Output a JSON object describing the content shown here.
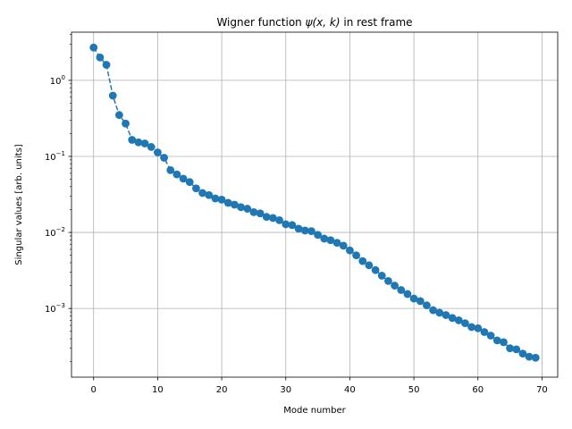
{
  "chart_data": {
    "type": "line",
    "title_main": "Wigner function ",
    "title_math": "ψ(x, k)",
    "title_tail": " in rest frame",
    "xlabel": "Mode number",
    "ylabel": "Singular values [arb. units]",
    "xlim": [
      -3.45,
      72.45
    ],
    "ylim": [
      0.000125,
      4.3
    ],
    "yscale": "log",
    "grid": true,
    "x_ticks": [
      0,
      10,
      20,
      30,
      40,
      50,
      60,
      70
    ],
    "x_tick_labels": [
      "0",
      "10",
      "20",
      "30",
      "40",
      "50",
      "60",
      "70"
    ],
    "y_ticks": [
      0.001,
      0.01,
      0.1,
      1
    ],
    "y_tick_labels": [
      {
        "base": "10",
        "exp": "−3"
      },
      {
        "base": "10",
        "exp": "−2"
      },
      {
        "base": "10",
        "exp": "−1"
      },
      {
        "base": "10",
        "exp": "0"
      }
    ],
    "series": [
      {
        "color": "#1f77b4",
        "marker": "circle",
        "line_style": "dashed",
        "x": [
          0,
          1,
          2,
          3,
          4,
          5,
          6,
          7,
          8,
          9,
          10,
          11,
          12,
          13,
          14,
          15,
          16,
          17,
          18,
          19,
          20,
          21,
          22,
          23,
          24,
          25,
          26,
          27,
          28,
          29,
          30,
          31,
          32,
          33,
          34,
          35,
          36,
          37,
          38,
          39,
          40,
          41,
          42,
          43,
          44,
          45,
          46,
          47,
          48,
          49,
          50,
          51,
          52,
          53,
          54,
          55,
          56,
          57,
          58,
          59,
          60,
          61,
          62,
          63,
          64,
          65,
          66,
          67,
          68,
          69
        ],
        "values": [
          2.7,
          2.0,
          1.6,
          0.63,
          0.35,
          0.27,
          0.165,
          0.153,
          0.148,
          0.133,
          0.113,
          0.096,
          0.066,
          0.058,
          0.051,
          0.046,
          0.038,
          0.033,
          0.031,
          0.028,
          0.027,
          0.0245,
          0.0232,
          0.0215,
          0.0205,
          0.0185,
          0.0178,
          0.016,
          0.0155,
          0.0145,
          0.0128,
          0.0125,
          0.0112,
          0.0106,
          0.0104,
          0.0093,
          0.0083,
          0.0079,
          0.0073,
          0.0067,
          0.0058,
          0.005,
          0.0042,
          0.0037,
          0.0032,
          0.0027,
          0.0023,
          0.002,
          0.00175,
          0.00155,
          0.00135,
          0.00125,
          0.0011,
          0.00095,
          0.00088,
          0.00082,
          0.00075,
          0.0007,
          0.00064,
          0.00057,
          0.00055,
          0.00049,
          0.00044,
          0.00038,
          0.00036,
          0.0003,
          0.00029,
          0.000255,
          0.000232,
          0.000225
        ]
      }
    ]
  }
}
